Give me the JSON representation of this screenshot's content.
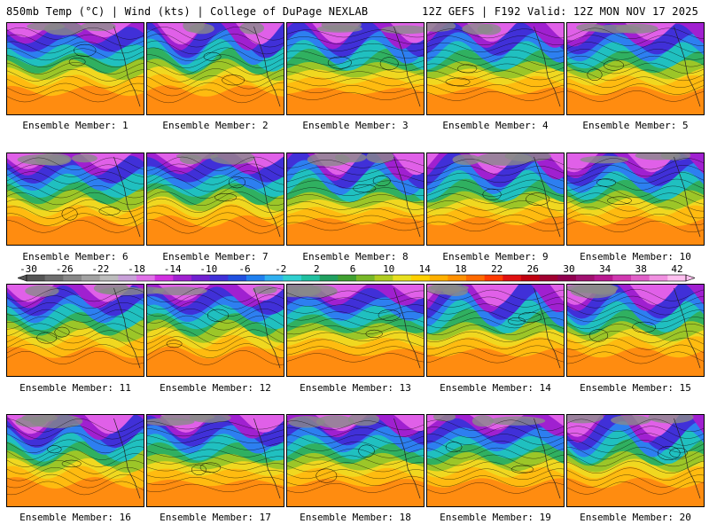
{
  "header": {
    "left": "850mb Temp (°C) | Wind (kts) | College of DuPage NEXLAB",
    "right": "12Z GEFS | F192 Valid: 12Z MON NOV 17 2025"
  },
  "panels": [
    {
      "label": "Ensemble Member: 1"
    },
    {
      "label": "Ensemble Member: 2"
    },
    {
      "label": "Ensemble Member: 3"
    },
    {
      "label": "Ensemble Member: 4"
    },
    {
      "label": "Ensemble Member: 5"
    },
    {
      "label": "Ensemble Member: 6"
    },
    {
      "label": "Ensemble Member: 7"
    },
    {
      "label": "Ensemble Member: 8"
    },
    {
      "label": "Ensemble Member: 9"
    },
    {
      "label": "Ensemble Member: 10"
    },
    {
      "label": "Ensemble Member: 11"
    },
    {
      "label": "Ensemble Member: 12"
    },
    {
      "label": "Ensemble Member: 13"
    },
    {
      "label": "Ensemble Member: 14"
    },
    {
      "label": "Ensemble Member: 15"
    },
    {
      "label": "Ensemble Member: 16"
    },
    {
      "label": "Ensemble Member: 17"
    },
    {
      "label": "Ensemble Member: 18"
    },
    {
      "label": "Ensemble Member: 19"
    },
    {
      "label": "Ensemble Member: 20"
    }
  ],
  "colorbar": {
    "ticks": [
      "-30",
      "-26",
      "-22",
      "-18",
      "-14",
      "-10",
      "-6",
      "-2",
      "2",
      "6",
      "10",
      "14",
      "18",
      "22",
      "26",
      "30",
      "34",
      "38",
      "42"
    ],
    "colors": [
      "#555555",
      "#6e6e6e",
      "#888888",
      "#a2a2a2",
      "#bcbcbc",
      "#c8a0d8",
      "#e070e8",
      "#d030e0",
      "#a020d0",
      "#7020d0",
      "#4030d8",
      "#2050e0",
      "#2080f0",
      "#30b0f0",
      "#30d0d0",
      "#20c0a0",
      "#20a060",
      "#40a030",
      "#78b828",
      "#b0cc20",
      "#e8e020",
      "#ffd000",
      "#ffb000",
      "#ff9000",
      "#ff6a00",
      "#ff3a00",
      "#e01010",
      "#c00010",
      "#a00030",
      "#900050",
      "#a01070",
      "#b81890",
      "#d038b0",
      "#e060c8",
      "#f090e0",
      "#ffc0f0"
    ]
  }
}
